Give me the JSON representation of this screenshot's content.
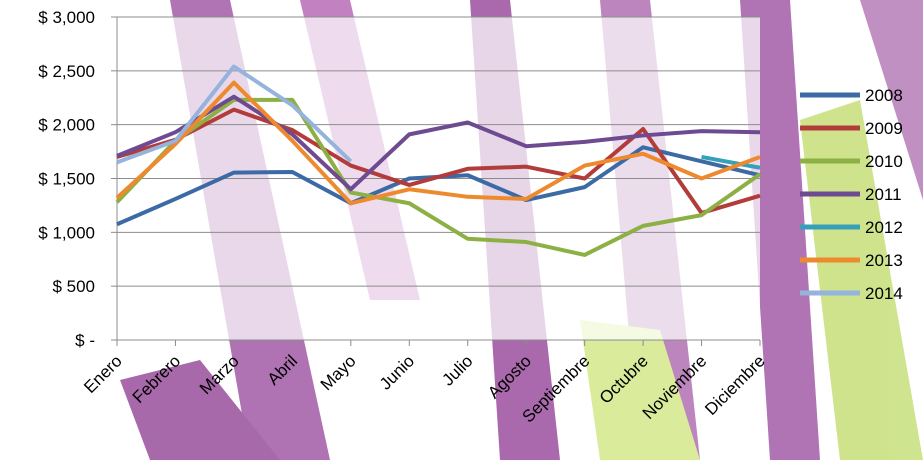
{
  "chart_data": {
    "type": "line",
    "categories": [
      "Enero",
      "Febrero",
      "Marzo",
      "Abril",
      "Mayo",
      "Junio",
      "Julio",
      "Agosto",
      "Septiembre",
      "Octubre",
      "Noviembre",
      "Diciembre"
    ],
    "series": [
      {
        "name": "2008",
        "color": "#3b6aa5",
        "values": [
          1075,
          1310,
          1555,
          1560,
          1270,
          1500,
          1530,
          1300,
          1420,
          1790,
          1660,
          1530
        ]
      },
      {
        "name": "2009",
        "color": "#b23c3a",
        "values": [
          1700,
          1860,
          2140,
          1950,
          1620,
          1440,
          1590,
          1610,
          1500,
          1960,
          1180,
          1340
        ]
      },
      {
        "name": "2010",
        "color": "#8cb043",
        "values": [
          1280,
          1850,
          2230,
          2230,
          1370,
          1270,
          940,
          910,
          790,
          1060,
          1160,
          1540
        ]
      },
      {
        "name": "2011",
        "color": "#6e4a91",
        "values": [
          1710,
          1930,
          2260,
          1910,
          1400,
          1910,
          2020,
          1800,
          1840,
          1900,
          1940,
          1930
        ]
      },
      {
        "name": "2012",
        "color": "#35a0b8",
        "values": [
          null,
          null,
          null,
          null,
          null,
          null,
          null,
          null,
          null,
          null,
          1700,
          1600
        ]
      },
      {
        "name": "2013",
        "color": "#ee8a2e",
        "values": [
          1320,
          1820,
          2390,
          1850,
          1270,
          1400,
          1330,
          1310,
          1620,
          1730,
          1500,
          1700
        ]
      },
      {
        "name": "2014",
        "color": "#95b3dc",
        "values": [
          1650,
          1850,
          2540,
          2180,
          1660,
          null,
          null,
          null,
          null,
          null,
          null,
          null
        ]
      }
    ],
    "ylim": [
      0,
      3000
    ],
    "yticks": [
      {
        "value": 0,
        "label": "$ -"
      },
      {
        "value": 500,
        "label": "$ 500"
      },
      {
        "value": 1000,
        "label": "$ 1,000"
      },
      {
        "value": 1500,
        "label": "$ 1,500"
      },
      {
        "value": 2000,
        "label": "$ 2,000"
      },
      {
        "value": 2500,
        "label": "$ 2,500"
      },
      {
        "value": 3000,
        "label": "$ 3,000"
      }
    ],
    "grid": true,
    "legend": "right"
  }
}
